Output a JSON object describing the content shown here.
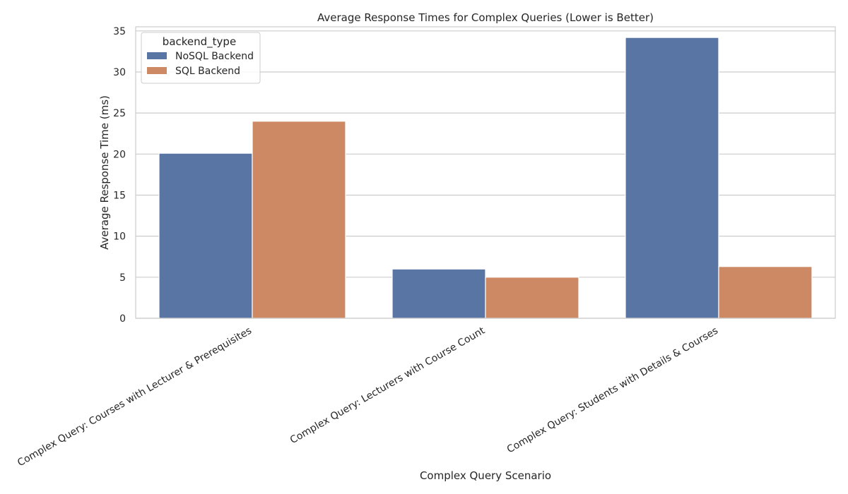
{
  "chart_data": {
    "type": "bar",
    "title": "Average Response Times for Complex Queries (Lower is Better)",
    "xlabel": "Complex Query Scenario",
    "ylabel": "Average Response Time (ms)",
    "ylim": [
      0,
      35.5
    ],
    "yticks": [
      0,
      5,
      10,
      15,
      20,
      25,
      30,
      35
    ],
    "grid": true,
    "categories": [
      "Complex Query: Courses with Lecturer & Prerequisites",
      "Complex Query: Lecturers with Course Count",
      "Complex Query: Students with Details & Courses"
    ],
    "legend": {
      "title": "backend_type",
      "placement": "top-left"
    },
    "series": [
      {
        "name": "NoSQL Backend",
        "color": "#5975a4",
        "values": [
          20.1,
          6.0,
          34.2
        ]
      },
      {
        "name": "SQL Backend",
        "color": "#cc8963",
        "values": [
          24.0,
          5.0,
          6.3
        ]
      }
    ]
  }
}
